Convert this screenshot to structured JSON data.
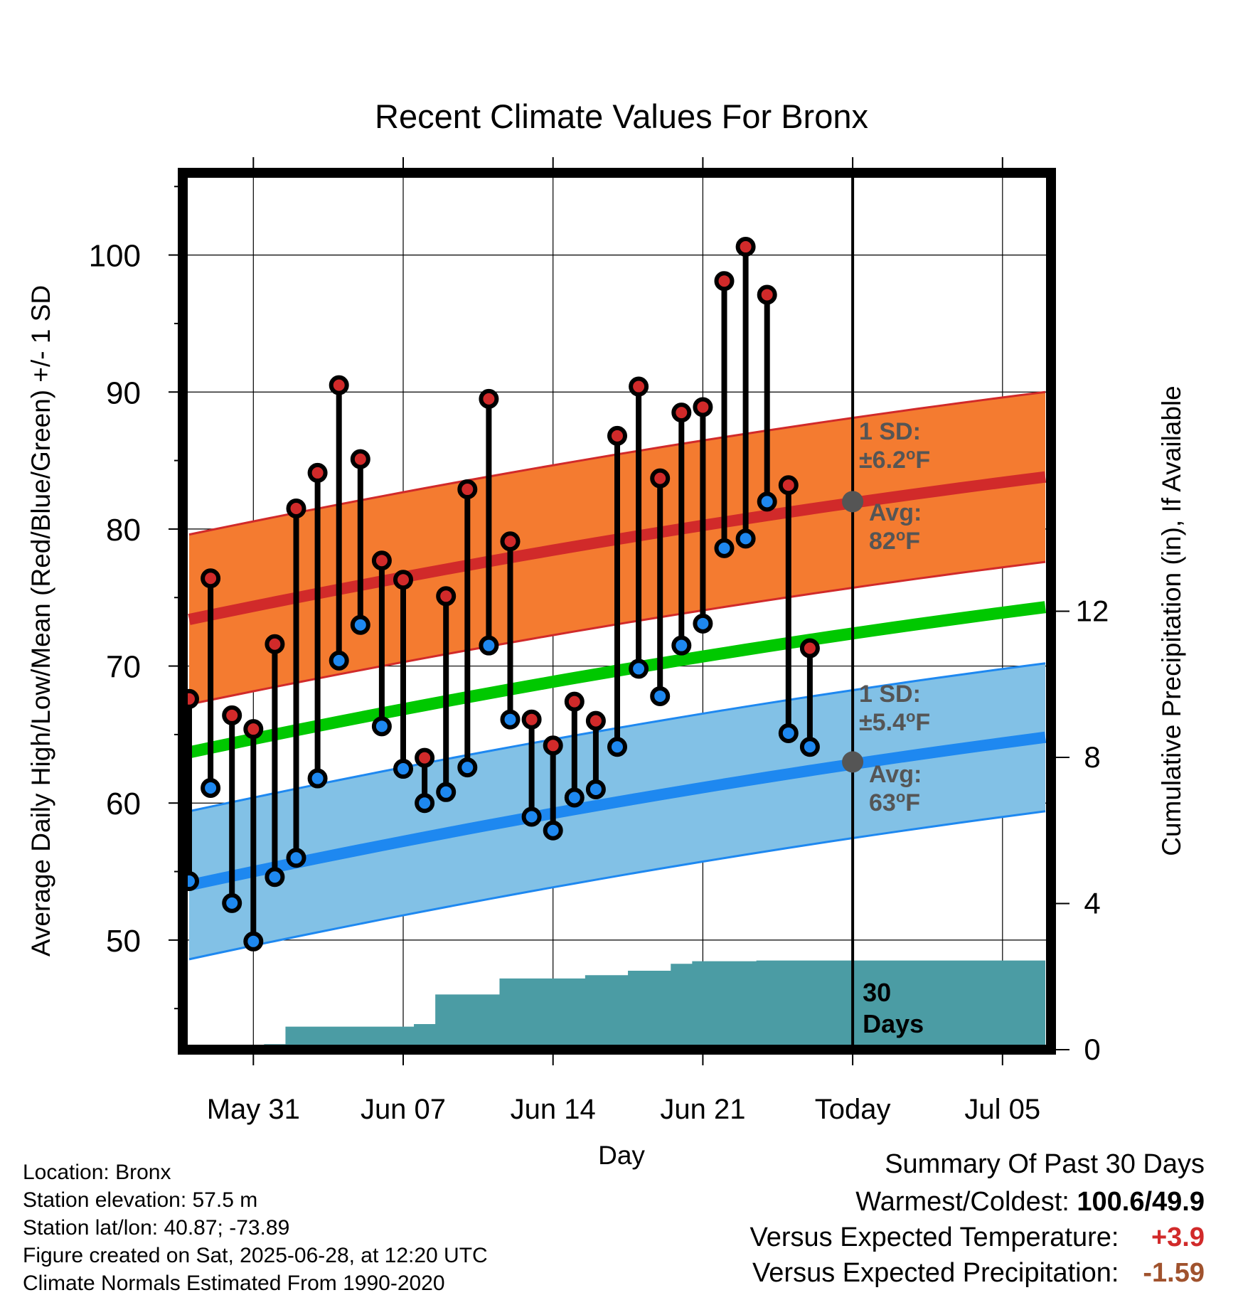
{
  "chart_data": {
    "type": "line",
    "title": "Recent Climate Values For Bronx",
    "xlabel": "Day",
    "ylabel": "Average Daily High/Low/Mean (Red/Blue/Green) +/- 1 SD",
    "y2label": "Cumulative Precipitation (in), If Available",
    "ylim": [
      42,
      106
    ],
    "y2lim": [
      0,
      24
    ],
    "yticks": [
      50,
      60,
      70,
      80,
      90,
      100
    ],
    "y2ticks": [
      0,
      4,
      8,
      12
    ],
    "xtick_labels": [
      "May 31",
      "Jun 07",
      "Jun 14",
      "Jun 21",
      "Today",
      "Jul 05"
    ],
    "today_label": "Today",
    "grid": true,
    "days": [
      "May 28",
      "May 29",
      "May 30",
      "May 31",
      "Jun 01",
      "Jun 02",
      "Jun 03",
      "Jun 04",
      "Jun 05",
      "Jun 06",
      "Jun 07",
      "Jun 08",
      "Jun 09",
      "Jun 10",
      "Jun 11",
      "Jun 12",
      "Jun 13",
      "Jun 14",
      "Jun 15",
      "Jun 16",
      "Jun 17",
      "Jun 18",
      "Jun 19",
      "Jun 20",
      "Jun 21",
      "Jun 22",
      "Jun 23",
      "Jun 24",
      "Jun 25",
      "Jun 26",
      "Jun 27",
      "Jun 28",
      "Jun 29",
      "Jun 30",
      "Jul 01",
      "Jul 02",
      "Jul 03",
      "Jul 04",
      "Jul 05",
      "Jul 06",
      "Jul 07"
    ],
    "observed_high": [
      67.6,
      76.4,
      66.4,
      65.4,
      71.6,
      81.5,
      84.1,
      90.5,
      85.1,
      77.7,
      76.3,
      63.3,
      75.1,
      82.9,
      89.5,
      79.1,
      66.1,
      64.2,
      67.4,
      66.0,
      86.8,
      90.4,
      83.7,
      88.5,
      88.9,
      98.1,
      100.6,
      97.1,
      83.2,
      71.3
    ],
    "observed_low": [
      54.3,
      61.1,
      52.7,
      49.9,
      54.6,
      56.0,
      61.8,
      70.4,
      73.0,
      65.6,
      62.5,
      60.0,
      60.8,
      62.6,
      71.5,
      66.1,
      59.0,
      58.0,
      60.4,
      61.0,
      64.1,
      69.8,
      67.8,
      71.5,
      73.1,
      78.6,
      79.3,
      82.0,
      65.1,
      64.1
    ],
    "normal_high": {
      "start": 73.4,
      "end": 83.8,
      "sd": 6.2
    },
    "normal_low": {
      "start": 54.0,
      "end": 64.8,
      "sd": 5.4
    },
    "normal_mean": {
      "start": 63.7,
      "end": 74.3
    },
    "cumulative_precip": [
      0,
      0,
      0,
      0,
      0.15,
      0.63,
      0.63,
      0.63,
      0.63,
      0.63,
      0.63,
      0.7,
      1.51,
      1.51,
      1.51,
      1.95,
      1.95,
      1.95,
      1.95,
      2.04,
      2.04,
      2.16,
      2.16,
      2.35,
      2.42,
      2.42,
      2.42,
      2.44,
      2.44,
      2.44,
      2.44,
      2.44,
      2.44,
      2.44,
      2.44,
      2.44,
      2.44,
      2.44,
      2.44,
      2.44,
      2.44
    ],
    "annotations": {
      "high_sd_line1": "1 SD:",
      "high_sd_line2": "±6.2",
      "high_avg_line1": "Avg:",
      "high_avg_line2": "82",
      "low_sd_line1": "1 SD:",
      "low_sd_line2": "±5.4",
      "low_avg_line1": "Avg:",
      "low_avg_line2": "63",
      "degree_mark": "o",
      "unit_letter": "F",
      "days_line1": "30",
      "days_line2": "Days"
    },
    "colors": {
      "high_band": "#f47b30",
      "high_line": "#d12a2a",
      "low_band": "#82c1e6",
      "low_line": "#1e88f0",
      "mean_line": "#00c800",
      "precip": "#4b9ca4",
      "high_marker": "#d12a2a",
      "low_marker": "#1e88f0",
      "annotation_text": "#555555"
    }
  },
  "info": {
    "location": "Location: Bronx",
    "elevation": "Station elevation: 57.5 m",
    "latlon": "Station lat/lon: 40.87; -73.89",
    "created": "Figure created on Sat, 2025-06-28, at 12:20 UTC",
    "normals": "Climate Normals Estimated From 1990-2020"
  },
  "summary": {
    "title": "Summary Of Past 30 Days",
    "warm_cold_label": "Warmest/Coldest:",
    "warm_cold_value": "100.6/49.9",
    "temp_label": "Versus Expected Temperature:",
    "temp_value": "+3.9",
    "temp_color": "#d12a2a",
    "precip_label": "Versus Expected Precipitation:",
    "precip_value": "-1.59",
    "precip_color": "#a0522d"
  }
}
